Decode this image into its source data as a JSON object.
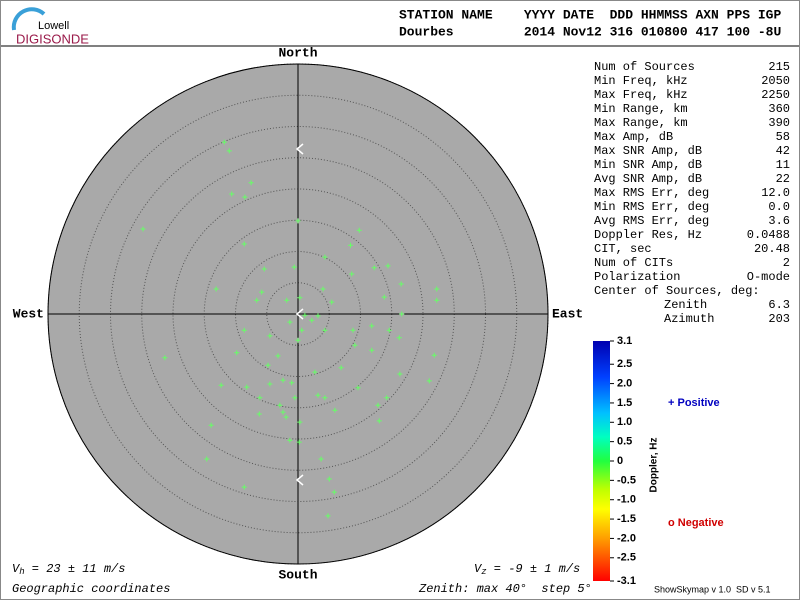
{
  "logo": {
    "top": "Lowell",
    "bottom": "DIGISONDE"
  },
  "header": {
    "line1": "STATION NAME    YYYY DATE  DDD HHMMSS AXN PPS IGP",
    "line2": "Dourbes         2014 Nov12 316 010800 417 100 -8U"
  },
  "stats": {
    "rows": [
      [
        "Num of Sources",
        "215"
      ],
      [
        "Min Freq, kHz",
        "2050"
      ],
      [
        "Max Freq, kHz",
        "2250"
      ],
      [
        "Min Range, km",
        "360"
      ],
      [
        "Max Range, km",
        "390"
      ],
      [
        "Max Amp, dB",
        "58"
      ],
      [
        "Max SNR Amp, dB",
        "42"
      ],
      [
        "Min SNR Amp, dB",
        "11"
      ],
      [
        "Avg SNR Amp, dB",
        "22"
      ],
      [
        "Max RMS Err, deg",
        "12.0"
      ],
      [
        "Min RMS Err, deg",
        "0.0"
      ],
      [
        "Avg RMS Err, deg",
        "3.6"
      ],
      [
        "Doppler Res, Hz",
        "0.0488"
      ],
      [
        "CIT, sec",
        "20.48"
      ],
      [
        "Num of CITs",
        "2"
      ],
      [
        "Polarization",
        "O-mode"
      ]
    ],
    "center_title": "Center of Sources, deg:",
    "center_rows": [
      [
        "Zenith",
        "6.3"
      ],
      [
        "Azimuth",
        "203"
      ]
    ]
  },
  "colorbar": {
    "title": "Doppler, Hz",
    "clim": [
      -3.1,
      3.1
    ],
    "ticks": [
      3.1,
      {
        "value": 2.5,
        "label": "2.5"
      },
      {
        "value": 2,
        "label": "2.0"
      },
      1.5,
      {
        "value": 1,
        "label": "1.0"
      },
      0.5,
      0,
      -0.5,
      {
        "value": -1,
        "label": "-1.0"
      },
      -1.5,
      {
        "value": -2,
        "label": "-2.0"
      },
      -2.5,
      -3.1
    ]
  },
  "legend": {
    "positive": "+ Positive",
    "negative": "o Negative"
  },
  "footer": {
    "vh_symbol": "V",
    "vh_sub": "h",
    "vh_text": " = 23 ± 11 m/s",
    "vz_symbol": "V",
    "vz_sub": "z",
    "vz_text": " = -9 ± 1 m/s",
    "coords": "Geographic coordinates",
    "zenith": "Zenith: max 40°  step 5°",
    "version": "ShowSkymap v 1.0  SD v 5.1"
  },
  "chart_data": {
    "type": "skymap",
    "directions": {
      "north": "North",
      "south": "South",
      "east": "East",
      "west": "West"
    },
    "rlim": [
      0,
      40
    ],
    "rticks": [
      5,
      10,
      15,
      20,
      25,
      30,
      35,
      40
    ],
    "color": "#66ff66",
    "x": [
      -11.8,
      -11.0,
      -7.5,
      -10.6,
      -8.5,
      -24.8,
      0,
      9.8,
      -8.6,
      4.3,
      8.4,
      14.4,
      12.2,
      8.6,
      -0.6,
      -5.4,
      16.5,
      22.2,
      -13.1,
      -5.8,
      -6.6,
      -1.8,
      0.3,
      4.0,
      5.4,
      13.8,
      22.2,
      16.6,
      1.1,
      2.2,
      3.2,
      -1.3,
      -8.6,
      -4.5,
      0.6,
      4.3,
      8.8,
      11.8,
      14.6,
      16.2,
      9.1,
      11.8,
      0,
      -3.2,
      -4.8,
      -21.3,
      -9.8,
      21.8,
      2.7,
      6.9,
      16.3,
      -2.4,
      -1.0,
      -4.5,
      -12.3,
      -8.2,
      9.6,
      21.0,
      14.2,
      3.2,
      4.3,
      -6.1,
      -2.9,
      -0.5,
      12.8,
      -6.2,
      -2.4,
      5.9,
      13.0,
      -13.9,
      0.3,
      -1.3,
      0.2,
      -14.6,
      3.7,
      5.0,
      -8.6,
      5.8,
      4.8,
      -1.9
    ],
    "y": [
      27.5,
      26.1,
      21.0,
      19.2,
      18.7,
      13.6,
      14.9,
      13.4,
      11.2,
      9.1,
      11.0,
      7.7,
      7.4,
      6.4,
      7.5,
      7.2,
      4.8,
      4.0,
      4.0,
      3.5,
      2.2,
      2.2,
      2.6,
      4.0,
      1.9,
      2.7,
      2.2,
      0,
      -0.2,
      -1.0,
      -0.3,
      -1.3,
      -2.6,
      -3.5,
      -2.6,
      -2.6,
      -2.6,
      -1.9,
      -2.6,
      -3.8,
      -5.0,
      -5.8,
      -4.2,
      -6.7,
      -8.2,
      -7.0,
      -6.2,
      -6.6,
      -9.3,
      -8.6,
      -9.6,
      -10.6,
      -11.0,
      -11.2,
      -11.4,
      -11.7,
      -11.8,
      -10.7,
      -13.4,
      -13.0,
      -13.4,
      -13.4,
      -14.6,
      -13.4,
      -14.6,
      -16.0,
      -15.7,
      -15.4,
      -17.1,
      -17.8,
      -17.3,
      -20.2,
      -20.5,
      -23.2,
      -23.2,
      -26.4,
      -27.7,
      -28.5,
      -32.3,
      -16.5
    ]
  }
}
